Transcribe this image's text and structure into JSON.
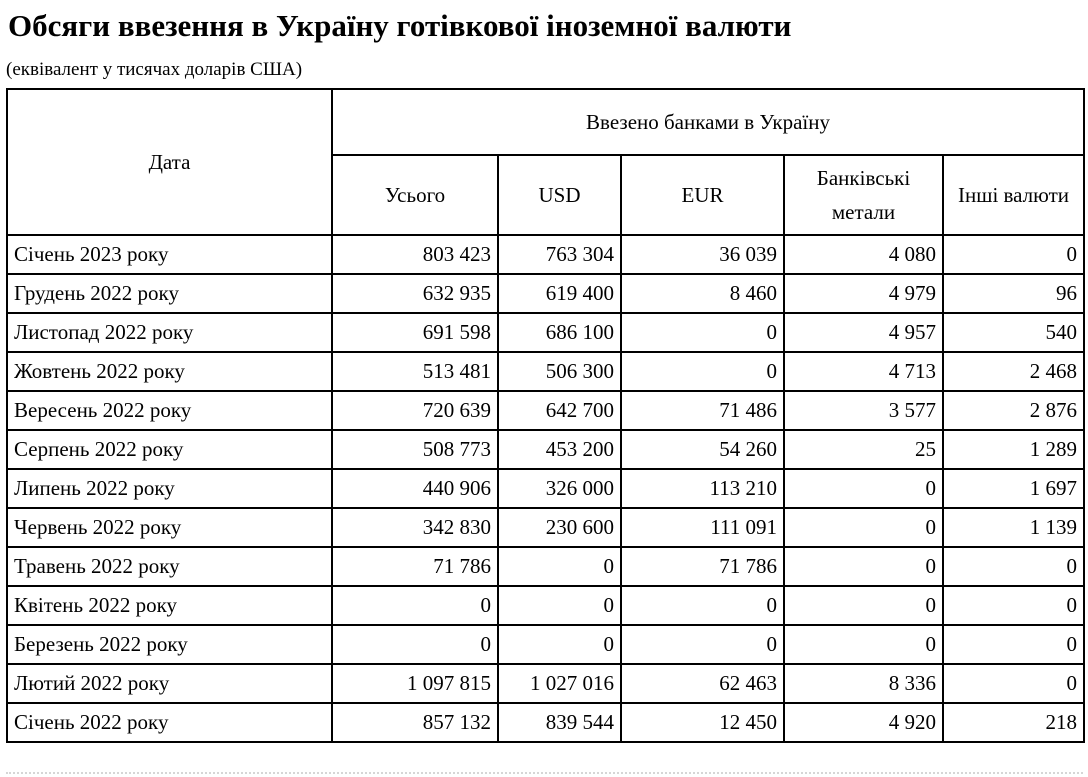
{
  "page": {
    "title": "Обсяги ввезення в Україну готівкової іноземної валюти",
    "subtitle": "(еквівалент у тисячах доларів США)"
  },
  "table": {
    "date_header": "Дата",
    "group_header": "Ввезено банками в Україну",
    "columns": [
      "Усього",
      "USD",
      "EUR",
      "Банківські метали",
      "Інші валюти"
    ],
    "rows": [
      {
        "date": "Січень 2023 року",
        "values": [
          "803 423",
          "763 304",
          "36 039",
          "4 080",
          "0"
        ]
      },
      {
        "date": "Грудень 2022 року",
        "values": [
          "632 935",
          "619 400",
          "8 460",
          "4 979",
          "96"
        ]
      },
      {
        "date": "Листопад 2022 року",
        "values": [
          "691 598",
          "686 100",
          "0",
          "4 957",
          "540"
        ]
      },
      {
        "date": "Жовтень 2022 року",
        "values": [
          "513 481",
          "506 300",
          "0",
          "4 713",
          "2 468"
        ]
      },
      {
        "date": "Вересень 2022 року",
        "values": [
          "720 639",
          "642 700",
          "71 486",
          "3 577",
          "2 876"
        ]
      },
      {
        "date": "Серпень 2022 року",
        "values": [
          "508 773",
          "453 200",
          "54 260",
          "25",
          "1 289"
        ]
      },
      {
        "date": "Липень 2022 року",
        "values": [
          "440 906",
          "326 000",
          "113 210",
          "0",
          "1 697"
        ]
      },
      {
        "date": "Червень 2022 року",
        "values": [
          "342 830",
          "230 600",
          "111 091",
          "0",
          "1 139"
        ]
      },
      {
        "date": "Травень 2022 року",
        "values": [
          "71 786",
          "0",
          "71 786",
          "0",
          "0"
        ]
      },
      {
        "date": "Квітень 2022 року",
        "values": [
          "0",
          "0",
          "0",
          "0",
          "0"
        ]
      },
      {
        "date": "Березень 2022 року",
        "values": [
          "0",
          "0",
          "0",
          "0",
          "0"
        ]
      },
      {
        "date": "Лютий 2022 року",
        "values": [
          "1 097 815",
          "1 027 016",
          "62 463",
          "8 336",
          "0"
        ]
      },
      {
        "date": "Січень 2022 року",
        "values": [
          "857 132",
          "839 544",
          "12 450",
          "4 920",
          "218"
        ]
      }
    ]
  },
  "chart_data": {
    "type": "table",
    "title": "Обсяги ввезення в Україну готівкової іноземної валюти (еквівалент у тисячах доларів США)",
    "columns": [
      "Дата",
      "Усього",
      "USD",
      "EUR",
      "Банківські метали",
      "Інші валюти"
    ],
    "rows": [
      [
        "Січень 2023 року",
        803423,
        763304,
        36039,
        4080,
        0
      ],
      [
        "Грудень 2022 року",
        632935,
        619400,
        8460,
        4979,
        96
      ],
      [
        "Листопад 2022 року",
        691598,
        686100,
        0,
        4957,
        540
      ],
      [
        "Жовтень 2022 року",
        513481,
        506300,
        0,
        4713,
        2468
      ],
      [
        "Вересень 2022 року",
        720639,
        642700,
        71486,
        3577,
        2876
      ],
      [
        "Серпень 2022 року",
        508773,
        453200,
        54260,
        25,
        1289
      ],
      [
        "Липень 2022 року",
        440906,
        326000,
        113210,
        0,
        1697
      ],
      [
        "Червень 2022 року",
        342830,
        230600,
        111091,
        0,
        1139
      ],
      [
        "Травень 2022 року",
        71786,
        0,
        71786,
        0,
        0
      ],
      [
        "Квітень 2022 року",
        0,
        0,
        0,
        0,
        0
      ],
      [
        "Березень 2022 року",
        0,
        0,
        0,
        0,
        0
      ],
      [
        "Лютий 2022 року",
        1097815,
        1027016,
        62463,
        8336,
        0
      ],
      [
        "Січень 2022 року",
        857132,
        839544,
        12450,
        4920,
        218
      ]
    ]
  }
}
